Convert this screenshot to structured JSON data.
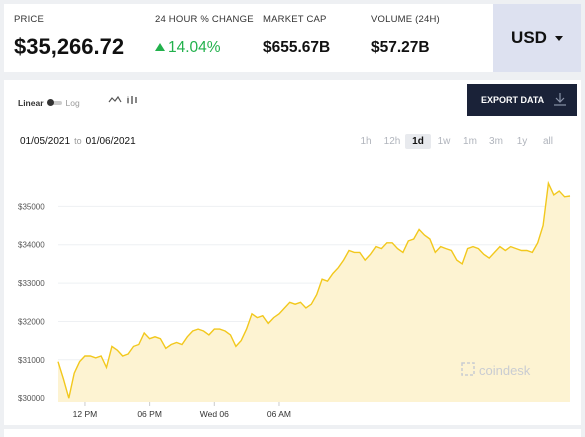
{
  "stats": {
    "price_label": "PRICE",
    "price_value": "$35,266.72",
    "change_label": "24 HOUR % CHANGE",
    "change_value": "14.04%",
    "mcap_label": "MARKET CAP",
    "mcap_value": "$655.67B",
    "vol_label": "VOLUME (24H)",
    "vol_value": "$57.27B"
  },
  "currency": "USD",
  "toggle": {
    "linear": "Linear",
    "log": "Log"
  },
  "export_label": "EXPORT DATA",
  "daterange": {
    "from": "01/05/2021",
    "to_word": "to",
    "to": "01/06/2021"
  },
  "ranges": [
    "1h",
    "12h",
    "1d",
    "1w",
    "1m",
    "3m",
    "1y",
    "all"
  ],
  "active_range": "1d",
  "watermark": "coindesk",
  "colors": {
    "line": "#f2c81d",
    "fill": "#fdf3d2",
    "positive": "#22b14c",
    "export_bg": "#1a2238"
  },
  "chart_data": {
    "type": "area",
    "ylim": [
      29900,
      36000
    ],
    "yticks": [
      {
        "label": "$35000",
        "v": 35000
      },
      {
        "label": "$34000",
        "v": 34000
      },
      {
        "label": "$33000",
        "v": 33000
      },
      {
        "label": "$32000",
        "v": 32000
      },
      {
        "label": "$31000",
        "v": 31000
      },
      {
        "label": "$30000",
        "v": 30000
      }
    ],
    "xticks": [
      {
        "label": "12 PM",
        "i": 5
      },
      {
        "label": "06 PM",
        "i": 17
      },
      {
        "label": "Wed 06",
        "i": 29
      },
      {
        "label": "06 AM",
        "i": 41
      }
    ],
    "values": [
      30950,
      30500,
      30000,
      30650,
      30950,
      31100,
      31100,
      31050,
      31100,
      30800,
      31350,
      31250,
      31100,
      31150,
      31350,
      31400,
      31700,
      31550,
      31600,
      31550,
      31300,
      31400,
      31450,
      31400,
      31600,
      31750,
      31800,
      31750,
      31650,
      31800,
      31800,
      31750,
      31650,
      31350,
      31500,
      31800,
      32200,
      32100,
      32150,
      31950,
      32100,
      32200,
      32350,
      32500,
      32450,
      32500,
      32350,
      32450,
      32700,
      33100,
      33050,
      33250,
      33400,
      33600,
      33850,
      33800,
      33800,
      33600,
      33750,
      33950,
      33900,
      34050,
      34050,
      33900,
      33800,
      34100,
      34150,
      34400,
      34250,
      34150,
      33800,
      33950,
      33900,
      33850,
      33600,
      33500,
      33900,
      33950,
      33900,
      33750,
      33650,
      33800,
      33950,
      33850,
      33950,
      33900,
      33850,
      33850,
      33800,
      34050,
      34500,
      35600,
      35300,
      35400,
      35250,
      35270
    ]
  }
}
